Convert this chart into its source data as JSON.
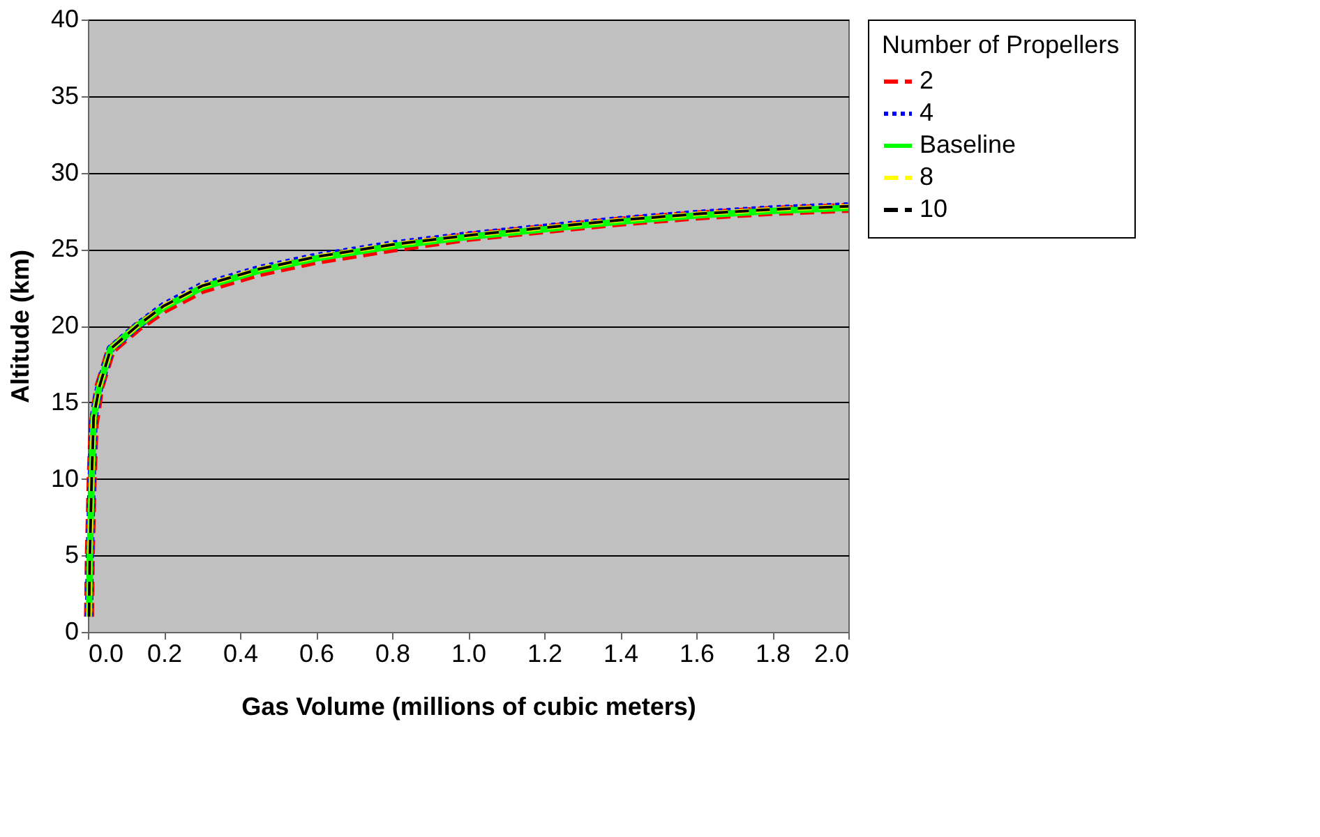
{
  "chart_data": {
    "type": "line",
    "xlabel": "Gas Volume (millions of cubic meters)",
    "ylabel": "Altitude (km)",
    "legend_title": "Number of Propellers",
    "x": [
      0.003,
      0.005,
      0.01,
      0.015,
      0.03,
      0.06,
      0.13,
      0.2,
      0.3,
      0.45,
      0.6,
      0.8,
      1.0,
      1.2,
      1.4,
      1.6,
      1.8,
      2.0
    ],
    "series": [
      {
        "name": "2",
        "color": "#ff0000",
        "line_style": "dashed",
        "values": [
          1,
          5,
          10,
          13.5,
          16,
          18.4,
          19.9,
          21.1,
          22.4,
          23.5,
          24.3,
          25.1,
          25.8,
          26.3,
          26.8,
          27.2,
          27.5,
          27.7
        ]
      },
      {
        "name": "4",
        "color": "#0000ff",
        "line_style": "dotted",
        "values": [
          1,
          5,
          10,
          14,
          16,
          18.5,
          20,
          21.3,
          22.6,
          23.7,
          24.5,
          25.3,
          25.9,
          26.4,
          26.9,
          27.3,
          27.6,
          27.8
        ]
      },
      {
        "name": "Baseline",
        "color": "#00ff00",
        "line_style": "solid",
        "values": [
          1,
          5,
          10,
          14,
          16,
          18.5,
          20,
          21.2,
          22.5,
          23.6,
          24.4,
          25.2,
          25.8,
          26.3,
          26.8,
          27.2,
          27.5,
          27.7
        ]
      },
      {
        "name": "8",
        "color": "#ffff00",
        "line_style": "dashed",
        "values": [
          1,
          5,
          10,
          14,
          16,
          18.5,
          20,
          21.3,
          22.6,
          23.7,
          24.5,
          25.3,
          25.9,
          26.4,
          26.9,
          27.3,
          27.6,
          27.8
        ]
      },
      {
        "name": "10",
        "color": "#000000",
        "line_style": "dashed",
        "values": [
          1,
          5,
          10,
          14,
          16,
          18.5,
          20,
          21.3,
          22.6,
          23.7,
          24.5,
          25.3,
          25.9,
          26.4,
          26.9,
          27.3,
          27.6,
          27.8
        ]
      }
    ],
    "xlim": [
      0,
      2.0
    ],
    "xticks": [
      {
        "value": 0,
        "label": "0.0"
      },
      0.2,
      0.4,
      0.6,
      0.8,
      {
        "value": 1,
        "label": "1.0"
      },
      1.2,
      1.4,
      1.6,
      1.8,
      {
        "value": 2,
        "label": "2.0"
      }
    ],
    "ylim": [
      0,
      40
    ],
    "yticks": [
      0,
      5,
      10,
      15,
      20,
      25,
      30,
      35,
      40
    ],
    "grid": "y",
    "legend": "right"
  }
}
